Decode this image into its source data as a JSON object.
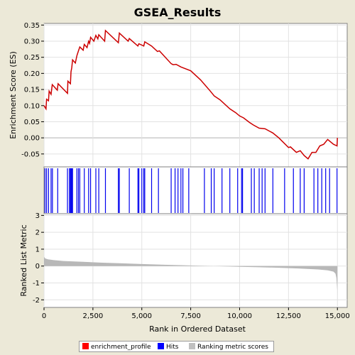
{
  "chart_data": {
    "type": "line",
    "title": "GSEA_Results",
    "xlabel": "Rank in Ordered Dataset",
    "xlim": [
      0,
      15500
    ],
    "x_ticks": [
      {
        "value": 0,
        "label": "0"
      },
      {
        "value": 2500,
        "label": "2,500"
      },
      {
        "value": 5000,
        "label": "5,000"
      },
      {
        "value": 7500,
        "label": "7,500"
      },
      {
        "value": 10000,
        "label": "10,000"
      },
      {
        "value": 12500,
        "label": "12,500"
      },
      {
        "value": 15000,
        "label": "15,000"
      }
    ],
    "enrichment_panel": {
      "ylabel": "Enrichment Score (ES)",
      "ylim": [
        -0.09,
        0.355
      ],
      "y_ticks": [
        {
          "value": 0.35,
          "label": "0.35"
        },
        {
          "value": 0.3,
          "label": "0.30"
        },
        {
          "value": 0.25,
          "label": "0.25"
        },
        {
          "value": 0.2,
          "label": "0.20"
        },
        {
          "value": 0.15,
          "label": "0.15"
        },
        {
          "value": 0.1,
          "label": "0.10"
        },
        {
          "value": 0.05,
          "label": "0.05"
        },
        {
          "value": 0.0,
          "label": "0.00"
        },
        {
          "value": -0.05,
          "label": "-0.05"
        }
      ],
      "series": {
        "name": "enrichment_profile",
        "color": "#cc0000",
        "points": [
          [
            0,
            0.1
          ],
          [
            100,
            0.09
          ],
          [
            130,
            0.12
          ],
          [
            230,
            0.115
          ],
          [
            260,
            0.145
          ],
          [
            360,
            0.135
          ],
          [
            420,
            0.165
          ],
          [
            680,
            0.148
          ],
          [
            720,
            0.168
          ],
          [
            1200,
            0.138
          ],
          [
            1220,
            0.176
          ],
          [
            1350,
            0.168
          ],
          [
            1380,
            0.205
          ],
          [
            1420,
            0.218
          ],
          [
            1460,
            0.242
          ],
          [
            1600,
            0.232
          ],
          [
            1680,
            0.255
          ],
          [
            1760,
            0.27
          ],
          [
            1830,
            0.282
          ],
          [
            2000,
            0.272
          ],
          [
            2060,
            0.29
          ],
          [
            2200,
            0.28
          ],
          [
            2280,
            0.3
          ],
          [
            2330,
            0.293
          ],
          [
            2380,
            0.312
          ],
          [
            2550,
            0.3
          ],
          [
            2650,
            0.318
          ],
          [
            2750,
            0.307
          ],
          [
            2800,
            0.32
          ],
          [
            3100,
            0.3
          ],
          [
            3140,
            0.333
          ],
          [
            3800,
            0.295
          ],
          [
            3850,
            0.325
          ],
          [
            4300,
            0.3
          ],
          [
            4360,
            0.308
          ],
          [
            4800,
            0.285
          ],
          [
            4850,
            0.292
          ],
          [
            5100,
            0.285
          ],
          [
            5150,
            0.298
          ],
          [
            5500,
            0.285
          ],
          [
            5800,
            0.268
          ],
          [
            5900,
            0.27
          ],
          [
            6500,
            0.23
          ],
          [
            6600,
            0.227
          ],
          [
            6750,
            0.228
          ],
          [
            7000,
            0.22
          ],
          [
            7500,
            0.208
          ],
          [
            8000,
            0.18
          ],
          [
            8500,
            0.145
          ],
          [
            8700,
            0.13
          ],
          [
            9000,
            0.118
          ],
          [
            9500,
            0.09
          ],
          [
            9800,
            0.078
          ],
          [
            10000,
            0.068
          ],
          [
            10200,
            0.062
          ],
          [
            10500,
            0.048
          ],
          [
            10700,
            0.04
          ],
          [
            11000,
            0.03
          ],
          [
            11300,
            0.028
          ],
          [
            11700,
            0.015
          ],
          [
            12000,
            0.0
          ],
          [
            12500,
            -0.03
          ],
          [
            12600,
            -0.028
          ],
          [
            12900,
            -0.045
          ],
          [
            13100,
            -0.04
          ],
          [
            13300,
            -0.055
          ],
          [
            13500,
            -0.065
          ],
          [
            13700,
            -0.045
          ],
          [
            13900,
            -0.045
          ],
          [
            14100,
            -0.025
          ],
          [
            14300,
            -0.02
          ],
          [
            14500,
            -0.005
          ],
          [
            14800,
            -0.02
          ],
          [
            14980,
            -0.025
          ],
          [
            15000,
            0.0
          ]
        ]
      }
    },
    "hits_panel": {
      "name": "Hits",
      "color": "#0000ee",
      "positions": [
        50,
        130,
        230,
        360,
        430,
        700,
        1200,
        1300,
        1350,
        1380,
        1420,
        1460,
        1680,
        1760,
        1830,
        2060,
        2280,
        2380,
        2650,
        2800,
        3140,
        3800,
        3850,
        4360,
        4800,
        4850,
        5000,
        5100,
        5150,
        5500,
        5850,
        6500,
        6700,
        6850,
        7000,
        7100,
        7400,
        8200,
        8550,
        8700,
        9100,
        9500,
        9900,
        10100,
        10150,
        10600,
        10750,
        11000,
        11150,
        11300,
        11700,
        12300,
        12750,
        13100,
        13300,
        13800,
        14000,
        14200,
        14400,
        14600,
        14980
      ]
    },
    "ranking_panel": {
      "name": "Ranking metric scores",
      "color": "#b8b8b8",
      "ylabel": "Ranked List Metric",
      "ylim": [
        -2.45,
        3.1
      ],
      "y_ticks": [
        {
          "value": 3,
          "label": "3"
        },
        {
          "value": 2,
          "label": "2"
        },
        {
          "value": 1,
          "label": "1"
        },
        {
          "value": 0,
          "label": "0"
        },
        {
          "value": -1,
          "label": "-1"
        },
        {
          "value": -2,
          "label": "-2"
        }
      ],
      "profile": [
        [
          0,
          0.55
        ],
        [
          60,
          0.45
        ],
        [
          200,
          0.4
        ],
        [
          500,
          0.35
        ],
        [
          1000,
          0.3
        ],
        [
          2000,
          0.25
        ],
        [
          3000,
          0.2
        ],
        [
          4000,
          0.16
        ],
        [
          5000,
          0.12
        ],
        [
          6000,
          0.08
        ],
        [
          7000,
          0.05
        ],
        [
          8000,
          0.02
        ],
        [
          9000,
          -0.01
        ],
        [
          10000,
          -0.04
        ],
        [
          11000,
          -0.07
        ],
        [
          12000,
          -0.1
        ],
        [
          13000,
          -0.14
        ],
        [
          14000,
          -0.2
        ],
        [
          14500,
          -0.25
        ],
        [
          14800,
          -0.33
        ],
        [
          14900,
          -0.45
        ],
        [
          14950,
          -0.7
        ],
        [
          14990,
          -1.4
        ],
        [
          15000,
          -2.3
        ]
      ]
    },
    "legend": [
      {
        "label": "enrichment_profile",
        "color": "#ff0000"
      },
      {
        "label": "Hits",
        "color": "#0000ff"
      },
      {
        "label": "Ranking metric scores",
        "color": "#c0c0c0"
      }
    ]
  }
}
